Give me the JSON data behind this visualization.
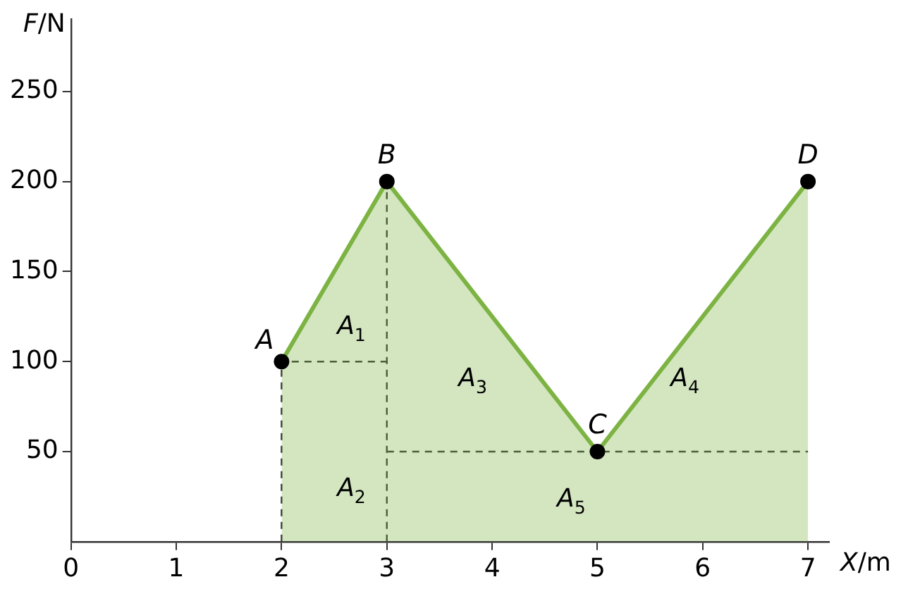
{
  "chart_data": {
    "type": "area",
    "xlabel": "X/m",
    "ylabel": "F/N",
    "xlim": [
      0,
      7.2
    ],
    "ylim": [
      0,
      290
    ],
    "xticks": [
      0,
      1,
      2,
      3,
      4,
      5,
      6,
      7
    ],
    "yticks": [
      50,
      100,
      150,
      200,
      250
    ],
    "grid": false,
    "legend": false,
    "marker": "circle",
    "series": [
      {
        "type": "area",
        "color": "#7cb342",
        "x": [
          2,
          3,
          5,
          7
        ],
        "values": [
          100,
          200,
          50,
          200
        ]
      },
      {
        "type": "line",
        "color": "#333333",
        "line_style": "dashed",
        "marker": "none",
        "x": [
          2,
          2,
          3
        ],
        "values": [
          0,
          100,
          100
        ]
      },
      {
        "type": "line",
        "color": "#333333",
        "line_style": "dashed",
        "marker": "none",
        "x": [
          3,
          3
        ],
        "values": [
          0,
          200
        ]
      },
      {
        "type": "line",
        "color": "#333333",
        "line_style": "dashed",
        "marker": "none",
        "x": [
          3,
          7
        ],
        "values": [
          50,
          50
        ]
      }
    ],
    "annotations": [
      {
        "text": "A",
        "x": 2,
        "y": 100
      },
      {
        "text": "B",
        "x": 3,
        "y": 200
      },
      {
        "text": "C",
        "x": 5,
        "y": 50
      },
      {
        "text": "D",
        "x": 7,
        "y": 200
      },
      "A$_{1}$",
      "A$_{2}$",
      "A$_{3}$",
      "A$_{4}$",
      "A$_{5}$"
    ]
  }
}
